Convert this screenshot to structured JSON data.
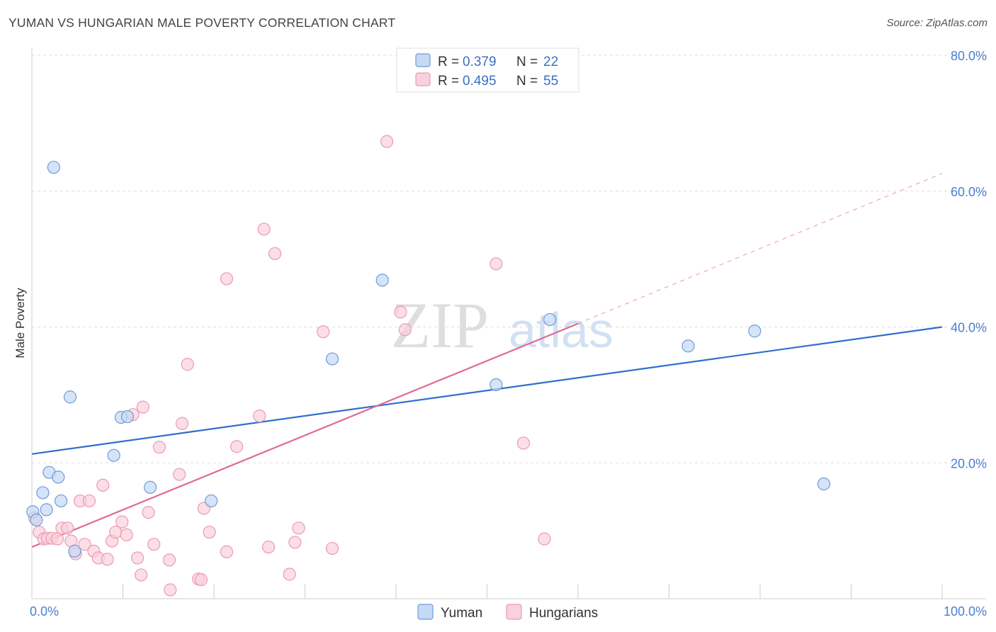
{
  "header": {
    "title": "YUMAN VS HUNGARIAN MALE POVERTY CORRELATION CHART",
    "source": "Source: ZipAtlas.com"
  },
  "watermark": {
    "zip": "ZIP",
    "atlas": "atlas"
  },
  "colors": {
    "yuman_fill": "#c5d9f5",
    "yuman_stroke": "#6f9bd8",
    "yuman_line": "#2f6fcc",
    "hungarian_fill": "#f9d0dc",
    "hungarian_stroke": "#eb9ab3",
    "hungarian_line": "#e06a96",
    "grid": "#dddddd",
    "axis_text": "#4a7fd0"
  },
  "stats_legend": {
    "rows": [
      {
        "series": "Yuman",
        "r_label": "R =",
        "r_value": "0.379",
        "n_label": "N =",
        "n_value": "22"
      },
      {
        "series": "Hungarians",
        "r_label": "R =",
        "r_value": "0.495",
        "n_label": "N =",
        "n_value": "55"
      }
    ]
  },
  "chart_data": {
    "type": "scatter",
    "title": "YUMAN VS HUNGARIAN MALE POVERTY CORRELATION CHART",
    "xlabel": "",
    "ylabel": "Male Poverty",
    "xlim": [
      0,
      100
    ],
    "ylim": [
      0,
      80
    ],
    "x_tick_labels": [
      {
        "value": 0,
        "label": "0.0%"
      },
      {
        "value": 100,
        "label": "100.0%"
      }
    ],
    "y_tick_labels": [
      {
        "value": 20,
        "label": "20.0%"
      },
      {
        "value": 40,
        "label": "40.0%"
      },
      {
        "value": 60,
        "label": "60.0%"
      },
      {
        "value": 80,
        "label": "80.0%"
      }
    ],
    "grid": true,
    "legend": [
      "Yuman",
      "Hungarians"
    ],
    "series": [
      {
        "name": "Yuman",
        "points": [
          [
            0.1,
            12.8
          ],
          [
            0.5,
            11.6
          ],
          [
            1.2,
            15.6
          ],
          [
            1.6,
            13.1
          ],
          [
            1.9,
            18.6
          ],
          [
            2.4,
            63.5
          ],
          [
            2.9,
            17.9
          ],
          [
            3.2,
            14.4
          ],
          [
            4.2,
            29.7
          ],
          [
            4.7,
            7.0
          ],
          [
            9.0,
            21.1
          ],
          [
            9.8,
            26.7
          ],
          [
            10.5,
            26.8
          ],
          [
            13.0,
            16.4
          ],
          [
            19.7,
            14.4
          ],
          [
            33.0,
            35.3
          ],
          [
            38.5,
            46.9
          ],
          [
            51.0,
            31.5
          ],
          [
            56.9,
            41.1
          ],
          [
            72.1,
            37.2
          ],
          [
            79.4,
            39.4
          ],
          [
            87.0,
            16.9
          ]
        ]
      },
      {
        "name": "Hungarians",
        "points": [
          [
            0.3,
            11.9
          ],
          [
            0.8,
            9.8
          ],
          [
            1.3,
            8.8
          ],
          [
            1.7,
            8.9
          ],
          [
            2.2,
            8.9
          ],
          [
            2.8,
            8.8
          ],
          [
            3.3,
            10.4
          ],
          [
            3.9,
            10.4
          ],
          [
            4.3,
            8.5
          ],
          [
            4.8,
            6.6
          ],
          [
            5.3,
            14.4
          ],
          [
            5.8,
            8.0
          ],
          [
            6.3,
            14.4
          ],
          [
            6.8,
            7.0
          ],
          [
            7.3,
            6.0
          ],
          [
            7.8,
            16.7
          ],
          [
            8.3,
            5.8
          ],
          [
            8.8,
            8.5
          ],
          [
            9.2,
            9.8
          ],
          [
            9.9,
            11.3
          ],
          [
            10.4,
            9.4
          ],
          [
            11.1,
            27.1
          ],
          [
            11.6,
            6.0
          ],
          [
            12.0,
            3.5
          ],
          [
            12.2,
            28.2
          ],
          [
            12.8,
            12.7
          ],
          [
            13.4,
            8.0
          ],
          [
            14.0,
            22.3
          ],
          [
            15.1,
            5.7
          ],
          [
            15.2,
            1.3
          ],
          [
            16.2,
            18.3
          ],
          [
            16.5,
            25.8
          ],
          [
            17.1,
            34.5
          ],
          [
            18.3,
            2.9
          ],
          [
            18.6,
            2.8
          ],
          [
            18.9,
            13.3
          ],
          [
            19.5,
            9.8
          ],
          [
            21.4,
            6.9
          ],
          [
            21.4,
            47.1
          ],
          [
            22.5,
            22.4
          ],
          [
            25.0,
            26.9
          ],
          [
            25.5,
            54.4
          ],
          [
            26.0,
            7.6
          ],
          [
            26.7,
            50.8
          ],
          [
            28.3,
            3.6
          ],
          [
            28.9,
            8.3
          ],
          [
            29.3,
            10.4
          ],
          [
            32.0,
            39.3
          ],
          [
            33.0,
            7.4
          ],
          [
            39.0,
            67.3
          ],
          [
            40.5,
            42.2
          ],
          [
            41.0,
            39.6
          ],
          [
            51.0,
            49.3
          ],
          [
            54.0,
            22.9
          ],
          [
            56.3,
            8.8
          ]
        ]
      }
    ],
    "trend_lines": [
      {
        "series": "Yuman",
        "x": [
          0,
          100
        ],
        "y": [
          21.3,
          40.0
        ],
        "style": "solid"
      },
      {
        "series": "Hungarians",
        "x": [
          0,
          60
        ],
        "y": [
          7.6,
          40.5
        ],
        "style": "solid"
      },
      {
        "series": "Hungarians",
        "x": [
          60,
          100
        ],
        "y": [
          40.5,
          62.6
        ],
        "style": "dashed"
      }
    ]
  }
}
